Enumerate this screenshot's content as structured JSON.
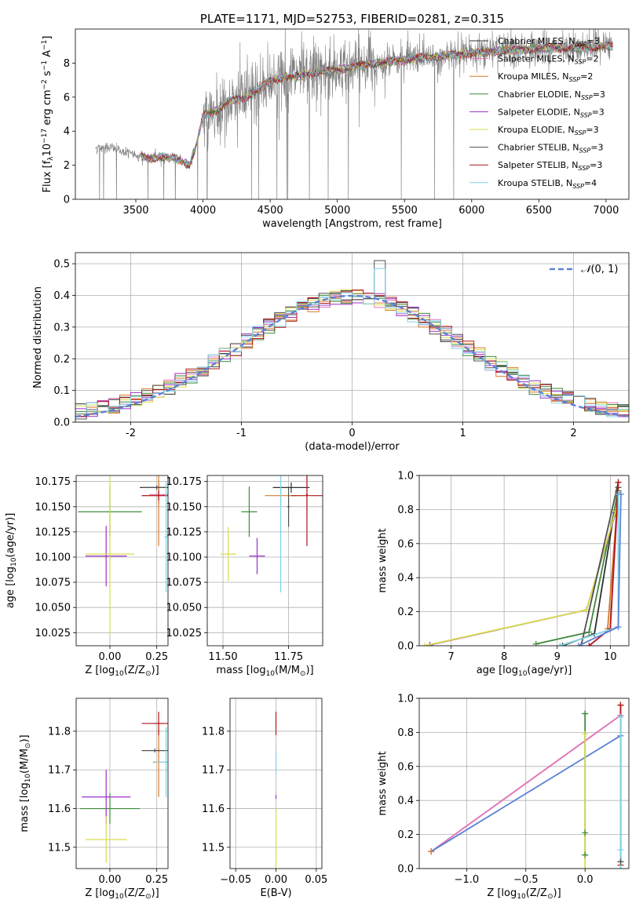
{
  "chart_data": [
    {
      "type": "line",
      "panel": "spectrum",
      "title": "PLATE=1171, MJD=52753, FIBERID=0281, z=0.315",
      "xlabel": "wavelength [Angstrom, rest frame]",
      "ylabel_parts": [
        "Flux [f",
        "λ",
        "10",
        "−17",
        " erg cm",
        "−2",
        " s",
        "−1",
        " A",
        "−1",
        "]"
      ],
      "xlim": [
        3050,
        7170
      ],
      "ylim": [
        0,
        10
      ],
      "xticks": [
        3500,
        4000,
        4500,
        5000,
        5500,
        6000,
        6500,
        7000
      ],
      "yticks": [
        0,
        2,
        4,
        6,
        8
      ],
      "grid": false,
      "legend_placement": "upper-right",
      "data_range": [
        3200,
        7050
      ],
      "model_range": [
        3540,
        7050
      ],
      "continuum_anchors": {
        "x": [
          3200,
          3300,
          3400,
          3500,
          3600,
          3700,
          3800,
          3900,
          3950,
          4000,
          4100,
          4200,
          4300,
          4400,
          4500,
          4600,
          4700,
          4800,
          4900,
          5000,
          5200,
          5400,
          5600,
          5800,
          6000,
          6200,
          6400,
          6600,
          6800,
          7050
        ],
        "y": [
          3.0,
          3.1,
          2.8,
          2.6,
          2.4,
          2.5,
          2.4,
          2.0,
          3.2,
          4.9,
          5.2,
          5.8,
          5.9,
          6.4,
          6.9,
          7.2,
          7.2,
          7.4,
          7.5,
          7.6,
          7.9,
          8.1,
          8.3,
          8.4,
          8.6,
          8.7,
          8.8,
          8.9,
          8.9,
          9.0
        ]
      },
      "series": [
        {
          "name": "Chabrier MILES",
          "nssp": "3",
          "color": "#2f2f2f"
        },
        {
          "name": "Salpeter MILES",
          "nssp": "2",
          "color": "#e377c2"
        },
        {
          "name": "Kroupa MILES",
          "nssp": "2",
          "color": "#d97a25"
        },
        {
          "name": "Chabrier ELODIE",
          "nssp": "3",
          "color": "#3c8a3c"
        },
        {
          "name": "Salpeter ELODIE",
          "nssp": "3",
          "color": "#9b30c8"
        },
        {
          "name": "Kroupa ELODIE",
          "nssp": "3",
          "color": "#d8dc4a"
        },
        {
          "name": "Chabrier STELIB",
          "nssp": "3",
          "color": "#505050"
        },
        {
          "name": "Salpeter STELIB",
          "nssp": "3",
          "color": "#b01818"
        },
        {
          "name": "Kroupa STELIB",
          "nssp": "4",
          "color": "#7ed3e8"
        }
      ],
      "data_color": "#808080"
    },
    {
      "type": "histogram",
      "panel": "residuals",
      "xlabel": "(data-model)/error",
      "ylabel": "Normed distribution",
      "xlim": [
        -2.5,
        2.5
      ],
      "ylim": [
        0,
        0.535
      ],
      "xticks": [
        -2,
        -1,
        0,
        1,
        2
      ],
      "yticks": [
        0.0,
        0.1,
        0.2,
        0.3,
        0.4,
        0.5
      ],
      "grid": true,
      "legend": "N(0,1)",
      "legend_parts": [
        "𝒩",
        "(0, 1)"
      ],
      "legend_placement": "upper-right",
      "reference_curve": {
        "name": "N(0,1)",
        "color": "#5b82d6",
        "style": "dashed"
      },
      "bin_width": 0.1,
      "bin_edges_start": -2.5,
      "base_values": [
        0.03,
        0.04,
        0.05,
        0.07,
        0.06,
        0.07,
        0.07,
        0.08,
        0.09,
        0.1,
        0.11,
        0.12,
        0.13,
        0.14,
        0.16,
        0.18,
        0.2,
        0.22,
        0.24,
        0.26,
        0.28,
        0.3,
        0.31,
        0.32,
        0.33,
        0.34,
        0.35,
        0.36,
        0.37,
        0.38,
        0.39,
        0.4,
        0.4,
        0.41,
        0.4,
        0.4,
        0.41,
        0.42,
        0.42,
        0.41,
        0.4,
        0.38,
        0.36,
        0.35,
        0.34,
        0.34,
        0.33,
        0.32,
        0.3,
        0.28,
        0.26,
        0.24,
        0.22,
        0.2,
        0.19,
        0.18,
        0.17,
        0.16,
        0.15,
        0.14,
        0.13,
        0.12,
        0.11,
        0.1,
        0.09,
        0.08,
        0.07,
        0.06,
        0.06,
        0.05,
        0.05,
        0.04,
        0.04,
        0.04,
        0.03,
        0.03,
        0.03,
        0.03,
        0.03,
        0.02,
        0.02,
        0.02,
        0.02,
        0.02,
        0.02,
        0.02,
        0.02,
        0.02,
        0.02,
        0.02,
        0.02,
        0.02,
        0.02,
        0.02,
        0.02,
        0.02,
        0.02,
        0.02,
        0.02,
        0.02
      ],
      "peak_values": {
        "x": 0.25,
        "chabrier_stelib": 0.51,
        "kroupa_stelib": 0.485
      }
    },
    {
      "type": "errorbar",
      "panel": "age-vs-Z",
      "xlabel_parts": [
        "Z [log",
        "10",
        "(Z/Z",
        "⊙",
        ")]"
      ],
      "ylabel_parts": [
        "age  [log",
        "10",
        "(age/yr)]"
      ],
      "xlim": [
        -0.18,
        0.31
      ],
      "ylim": [
        10.012,
        10.181
      ],
      "xticks": [
        0.0,
        0.25
      ],
      "xtick_labels": [
        "0.00",
        "0.25"
      ],
      "yticks": [
        10.025,
        10.05,
        10.075,
        10.1,
        10.125,
        10.15,
        10.175
      ],
      "ytick_labels": [
        "10.025",
        "10.050",
        "10.075",
        "10.100",
        "10.125",
        "10.150",
        "10.175"
      ],
      "grid": true,
      "points": [
        {
          "series": "Chabrier MILES",
          "x": 0.26,
          "xerr": 0.1,
          "y": 10.169,
          "yerr": 0.005
        },
        {
          "series": "Salpeter MILES",
          "x": 0.26,
          "xerr": 0.05,
          "y": 10.162,
          "yerr": 0.01
        },
        {
          "series": "Kroupa MILES",
          "x": 0.26,
          "xerr": 0.09,
          "y": 10.161,
          "yerr": 0.05
        },
        {
          "series": "Chabrier ELODIE",
          "x": 0.0,
          "xerr": 0.17,
          "y": 10.145,
          "yerr": 0.025
        },
        {
          "series": "Salpeter ELODIE",
          "x": -0.02,
          "xerr": 0.11,
          "y": 10.101,
          "yerr": 0.03
        },
        {
          "series": "Kroupa ELODIE",
          "x": 0.0,
          "xerr": 0.13,
          "y": 10.103,
          "yerr": 0.08
        },
        {
          "series": "Chabrier STELIB",
          "x": 0.25,
          "xerr": 0.08,
          "y": 10.169,
          "yerr": 0.002
        },
        {
          "series": "Salpeter STELIB",
          "x": 0.26,
          "xerr": 0.09,
          "y": 10.161,
          "yerr": 0.005
        },
        {
          "series": "Kroupa STELIB",
          "x": 0.3,
          "xerr": 0.01,
          "y": 10.12,
          "yerr": 0.055
        }
      ]
    },
    {
      "type": "errorbar",
      "panel": "age-vs-mass",
      "xlabel_parts": [
        "mass [log",
        "10",
        "(M/M",
        "⊙",
        ")]"
      ],
      "xlim": [
        11.44,
        11.88
      ],
      "ylim": [
        10.012,
        10.181
      ],
      "xticks": [
        11.5,
        11.75
      ],
      "xtick_labels": [
        "11.50",
        "11.75"
      ],
      "yticks": [
        10.025,
        10.05,
        10.075,
        10.1,
        10.125,
        10.15,
        10.175
      ],
      "ytick_labels": [
        "10.025",
        "10.050",
        "10.075",
        "10.100",
        "10.125",
        "10.150",
        "10.175"
      ],
      "grid": true,
      "points": [
        {
          "series": "Chabrier MILES",
          "x": 11.76,
          "xerr": 0.07,
          "y": 10.169,
          "yerr": 0.005
        },
        {
          "series": "Salpeter MILES",
          "x": 11.82,
          "xerr": 0.005,
          "y": 10.162,
          "yerr": 0.022
        },
        {
          "series": "Kroupa MILES",
          "x": 11.72,
          "xerr": 0.06,
          "y": 10.161,
          "yerr": 0.01
        },
        {
          "series": "Chabrier ELODIE",
          "x": 11.6,
          "xerr": 0.03,
          "y": 10.145,
          "yerr": 0.025
        },
        {
          "series": "Salpeter ELODIE",
          "x": 11.63,
          "xerr": 0.03,
          "y": 10.101,
          "yerr": 0.018
        },
        {
          "series": "Kroupa ELODIE",
          "x": 11.52,
          "xerr": 0.03,
          "y": 10.103,
          "yerr": 0.027
        },
        {
          "series": "Chabrier STELIB",
          "x": 11.75,
          "xerr": 0.005,
          "y": 10.15,
          "yerr": 0.02
        },
        {
          "series": "Salpeter STELIB",
          "x": 11.82,
          "xerr": 0.06,
          "y": 10.161,
          "yerr": 0.05
        },
        {
          "series": "Kroupa STELIB",
          "x": 11.72,
          "xerr": 0.005,
          "y": 10.125,
          "yerr": 0.06
        }
      ]
    },
    {
      "type": "line",
      "panel": "weight-vs-age",
      "xlabel_parts": [
        "age  [log",
        "10",
        "(age/yr)]"
      ],
      "ylabel": "mass weight",
      "xlim": [
        6.4,
        10.35
      ],
      "ylim": [
        0,
        1.0
      ],
      "xticks": [
        7,
        8,
        9,
        10
      ],
      "yticks": [
        0.0,
        0.2,
        0.4,
        0.6,
        0.8,
        1.0
      ],
      "grid": true,
      "series": [
        {
          "series": "Chabrier MILES",
          "x": [
            9.1,
            9.7,
            10.15
          ],
          "y": [
            0.0,
            0.07,
            0.93
          ]
        },
        {
          "series": "Salpeter MILES",
          "x": [
            10.0,
            10.15
          ],
          "y": [
            0.1,
            0.9
          ]
        },
        {
          "series": "Kroupa MILES",
          "x": [
            9.95,
            10.15
          ],
          "y": [
            0.1,
            0.9
          ]
        },
        {
          "series": "Chabrier ELODIE",
          "x": [
            8.6,
            9.6,
            10.15
          ],
          "y": [
            0.01,
            0.08,
            0.91
          ]
        },
        {
          "series": "Salpeter ELODIE",
          "x": [
            6.6,
            9.55,
            10.1
          ],
          "y": [
            0.005,
            0.21,
            0.78
          ]
        },
        {
          "series": "Kroupa ELODIE",
          "x": [
            6.5,
            9.55,
            10.1
          ],
          "y": [
            0.0,
            0.21,
            0.79
          ]
        },
        {
          "series": "Chabrier STELIB",
          "x": [
            9.45,
            10.15
          ],
          "y": [
            0.0,
            0.96
          ]
        },
        {
          "series": "Salpeter STELIB",
          "x": [
            9.6,
            10.0,
            10.15
          ],
          "y": [
            0.0,
            0.1,
            0.96
          ]
        },
        {
          "series": "Kroupa STELIB",
          "x": [
            9.05,
            10.15,
            10.15
          ],
          "y": [
            0.0,
            0.11,
            0.89
          ]
        },
        {
          "series": "Blue reference",
          "x": [
            9.4,
            10.15,
            10.2
          ],
          "y": [
            0.0,
            0.11,
            0.89
          ]
        }
      ]
    },
    {
      "type": "errorbar",
      "panel": "mass-vs-Z",
      "xlabel_parts": [
        "Z [log",
        "10",
        "(Z/Z",
        "⊙",
        ")]"
      ],
      "ylabel_parts": [
        "mass [log",
        "10",
        "(M/M",
        "⊙",
        ")]"
      ],
      "xlim": [
        -0.18,
        0.31
      ],
      "ylim": [
        11.445,
        11.885
      ],
      "xticks": [
        0.0,
        0.25
      ],
      "xtick_labels": [
        "0.00",
        "0.25"
      ],
      "yticks": [
        11.5,
        11.6,
        11.7,
        11.8
      ],
      "ytick_labels": [
        "11.5",
        "11.6",
        "11.7",
        "11.8"
      ],
      "grid": true,
      "points": [
        {
          "series": "Chabrier MILES",
          "x": 0.26,
          "xerr": 0.09,
          "y": 11.75,
          "yerr": 0.005
        },
        {
          "series": "Salpeter MILES",
          "x": 0.26,
          "xerr": 0.03,
          "y": 11.82,
          "yerr": 0.005
        },
        {
          "series": "Kroupa MILES",
          "x": 0.26,
          "xerr": 0.03,
          "y": 11.72,
          "yerr": 0.09
        },
        {
          "series": "Chabrier ELODIE",
          "x": 0.0,
          "xerr": 0.16,
          "y": 11.6,
          "yerr": 0.04
        },
        {
          "series": "Salpeter ELODIE",
          "x": -0.02,
          "xerr": 0.13,
          "y": 11.63,
          "yerr": 0.07
        },
        {
          "series": "Kroupa ELODIE",
          "x": -0.02,
          "xerr": 0.11,
          "y": 11.52,
          "yerr": 0.06
        },
        {
          "series": "Chabrier STELIB",
          "x": 0.24,
          "xerr": 0.07,
          "y": 11.75,
          "yerr": 0.005
        },
        {
          "series": "Salpeter STELIB",
          "x": 0.26,
          "xerr": 0.09,
          "y": 11.82,
          "yerr": 0.03
        },
        {
          "series": "Kroupa STELIB",
          "x": 0.3,
          "xerr": 0.06,
          "y": 11.72,
          "yerr": 0.09
        }
      ]
    },
    {
      "type": "errorbar",
      "panel": "mass-vs-EBV",
      "xlabel": "E(B-V)",
      "xlim": [
        -0.057,
        0.057
      ],
      "ylim": [
        11.445,
        11.885
      ],
      "xticks": [
        -0.05,
        0.0,
        0.05
      ],
      "xtick_labels": [
        "−0.05",
        "0.00",
        "0.05"
      ],
      "yticks": [
        11.5,
        11.6,
        11.7,
        11.8
      ],
      "ytick_labels": [
        "11.5",
        "11.6",
        "11.7",
        "11.8"
      ],
      "grid": true,
      "points": [
        {
          "series": "Salpeter STELIB",
          "x": 0.0,
          "xerr": 0.0,
          "y": 11.82,
          "yerr": 0.03
        },
        {
          "series": "Kroupa STELIB",
          "x": 0.0,
          "xerr": 0.0,
          "y": 11.72,
          "yerr": 0.03
        },
        {
          "series": "Salpeter ELODIE",
          "x": 0.0,
          "xerr": 0.0,
          "y": 11.63,
          "yerr": 0.005
        },
        {
          "series": "Kroupa ELODIE",
          "x": 0.0,
          "xerr": 0.0,
          "y": 11.52,
          "yerr": 0.08
        }
      ]
    },
    {
      "type": "line",
      "panel": "weight-vs-Z",
      "xlabel_parts": [
        "Z [log",
        "10",
        "(Z/Z",
        "⊙",
        ")]"
      ],
      "ylabel": "mass weight",
      "xlim": [
        -1.4,
        0.37
      ],
      "ylim": [
        0,
        1.0
      ],
      "xticks": [
        -1.0,
        -0.5,
        0.0
      ],
      "xtick_labels": [
        "−1.0",
        "−0.5",
        "0.0"
      ],
      "yticks": [
        0.0,
        0.2,
        0.4,
        0.6,
        0.8,
        1.0
      ],
      "grid": true,
      "series": [
        {
          "series": "Kroupa MILES",
          "x": [
            -1.3,
            0.3
          ],
          "y": [
            0.1,
            0.9
          ]
        },
        {
          "series": "Salpeter MILES",
          "x": [
            -1.3,
            0.3
          ],
          "y": [
            0.1,
            0.9
          ]
        },
        {
          "series": "Blue reference",
          "x": [
            -1.3,
            0.3
          ],
          "y": [
            0.1,
            0.78
          ]
        },
        {
          "series": "Chabrier ELODIE",
          "x": [
            0.0,
            0.0
          ],
          "y": [
            0.08,
            0.91
          ]
        },
        {
          "series": "Kroupa ELODIE",
          "x": [
            0.0,
            0.0
          ],
          "y": [
            0.0,
            0.79
          ]
        },
        {
          "series": "Chabrier STELIB",
          "x": [
            0.3,
            0.3
          ],
          "y": [
            0.04,
            0.96
          ]
        },
        {
          "series": "Salpeter STELIB",
          "x": [
            0.3,
            0.3
          ],
          "y": [
            0.02,
            0.96
          ]
        },
        {
          "series": "Kroupa STELIB",
          "x": [
            0.3,
            0.3
          ],
          "y": [
            0.0,
            0.89
          ]
        }
      ],
      "markers": [
        {
          "series": "Chabrier ELODIE",
          "x": 0.0,
          "y": 0.91
        },
        {
          "series": "Chabrier ELODIE",
          "x": 0.0,
          "y": 0.21
        },
        {
          "series": "Chabrier ELODIE",
          "x": 0.0,
          "y": 0.08
        },
        {
          "series": "Kroupa MILES",
          "x": -1.3,
          "y": 0.1
        },
        {
          "series": "Salpeter STELIB",
          "x": 0.3,
          "y": 0.96
        },
        {
          "series": "Chabrier STELIB",
          "x": 0.3,
          "y": 0.04
        },
        {
          "series": "Kroupa STELIB",
          "x": 0.3,
          "y": 0.11
        }
      ]
    }
  ]
}
